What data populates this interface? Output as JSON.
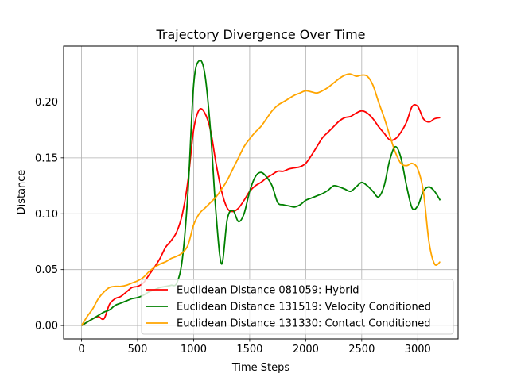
{
  "chart_data": {
    "type": "line",
    "title": "Trajectory Divergence Over Time",
    "xlabel": "Time Steps",
    "ylabel": "Distance",
    "xlim": [
      -160,
      3360
    ],
    "ylim": [
      -0.012,
      0.25
    ],
    "xticks": [
      0,
      500,
      1000,
      1500,
      2000,
      2500,
      3000
    ],
    "yticks": [
      0.0,
      0.05,
      0.1,
      0.15,
      0.2
    ],
    "xtick_labels": [
      "0",
      "500",
      "1000",
      "1500",
      "2000",
      "2500",
      "3000"
    ],
    "ytick_labels": [
      "0.00",
      "0.05",
      "0.10",
      "0.15",
      "0.20"
    ],
    "grid": true,
    "legend_position": "lower-right",
    "series": [
      {
        "name": "Euclidean Distance 081059: Hybrid",
        "color": "#ff0000",
        "x": [
          0,
          50,
          100,
          150,
          200,
          250,
          300,
          350,
          400,
          450,
          500,
          550,
          600,
          650,
          700,
          750,
          800,
          850,
          900,
          950,
          1000,
          1050,
          1100,
          1150,
          1200,
          1250,
          1300,
          1350,
          1400,
          1450,
          1500,
          1550,
          1600,
          1650,
          1700,
          1750,
          1800,
          1850,
          1900,
          1950,
          2000,
          2050,
          2100,
          2150,
          2200,
          2250,
          2300,
          2350,
          2400,
          2450,
          2500,
          2550,
          2600,
          2650,
          2700,
          2750,
          2800,
          2850,
          2900,
          2950,
          3000,
          3050,
          3100,
          3150,
          3200
        ],
        "y": [
          0.0,
          0.003,
          0.006,
          0.008,
          0.006,
          0.019,
          0.024,
          0.026,
          0.03,
          0.034,
          0.035,
          0.038,
          0.045,
          0.052,
          0.06,
          0.07,
          0.076,
          0.084,
          0.1,
          0.13,
          0.175,
          0.193,
          0.19,
          0.175,
          0.145,
          0.12,
          0.105,
          0.102,
          0.105,
          0.112,
          0.12,
          0.125,
          0.128,
          0.132,
          0.135,
          0.138,
          0.138,
          0.14,
          0.141,
          0.142,
          0.145,
          0.152,
          0.16,
          0.168,
          0.173,
          0.178,
          0.183,
          0.186,
          0.187,
          0.19,
          0.192,
          0.19,
          0.185,
          0.178,
          0.172,
          0.166,
          0.167,
          0.173,
          0.182,
          0.196,
          0.196,
          0.185,
          0.182,
          0.185,
          0.186
        ]
      },
      {
        "name": "Euclidean Distance 131519: Velocity Conditioned",
        "color": "#008000",
        "x": [
          0,
          50,
          100,
          150,
          200,
          250,
          300,
          350,
          400,
          450,
          500,
          550,
          600,
          650,
          700,
          750,
          800,
          850,
          900,
          950,
          1000,
          1050,
          1100,
          1150,
          1200,
          1250,
          1300,
          1350,
          1400,
          1450,
          1500,
          1550,
          1600,
          1650,
          1700,
          1750,
          1800,
          1850,
          1900,
          1950,
          2000,
          2050,
          2100,
          2150,
          2200,
          2250,
          2300,
          2350,
          2400,
          2450,
          2500,
          2550,
          2600,
          2650,
          2700,
          2750,
          2800,
          2850,
          2900,
          2950,
          3000,
          3050,
          3100,
          3150,
          3200
        ],
        "y": [
          0.0,
          0.003,
          0.006,
          0.009,
          0.012,
          0.014,
          0.018,
          0.02,
          0.022,
          0.024,
          0.025,
          0.027,
          0.03,
          0.032,
          0.034,
          0.035,
          0.036,
          0.038,
          0.06,
          0.12,
          0.215,
          0.237,
          0.225,
          0.175,
          0.1,
          0.055,
          0.095,
          0.103,
          0.093,
          0.1,
          0.12,
          0.133,
          0.137,
          0.133,
          0.125,
          0.11,
          0.108,
          0.107,
          0.106,
          0.108,
          0.112,
          0.114,
          0.116,
          0.118,
          0.121,
          0.125,
          0.124,
          0.122,
          0.12,
          0.124,
          0.128,
          0.125,
          0.12,
          0.115,
          0.125,
          0.148,
          0.16,
          0.15,
          0.125,
          0.105,
          0.107,
          0.12,
          0.124,
          0.12,
          0.112
        ]
      },
      {
        "name": "Euclidean Distance 131330: Contact Conditioned",
        "color": "#ffa500",
        "x": [
          0,
          50,
          100,
          150,
          200,
          250,
          300,
          350,
          400,
          450,
          500,
          550,
          600,
          650,
          700,
          750,
          800,
          850,
          900,
          950,
          1000,
          1050,
          1100,
          1150,
          1200,
          1250,
          1300,
          1350,
          1400,
          1450,
          1500,
          1550,
          1600,
          1650,
          1700,
          1750,
          1800,
          1850,
          1900,
          1950,
          2000,
          2050,
          2100,
          2150,
          2200,
          2250,
          2300,
          2350,
          2400,
          2450,
          2500,
          2550,
          2600,
          2650,
          2700,
          2750,
          2800,
          2850,
          2900,
          2950,
          3000,
          3050,
          3100,
          3150,
          3200
        ],
        "y": [
          0.0,
          0.008,
          0.015,
          0.024,
          0.03,
          0.034,
          0.035,
          0.035,
          0.036,
          0.038,
          0.04,
          0.043,
          0.048,
          0.052,
          0.055,
          0.057,
          0.06,
          0.062,
          0.065,
          0.072,
          0.09,
          0.1,
          0.105,
          0.11,
          0.115,
          0.122,
          0.13,
          0.14,
          0.15,
          0.16,
          0.167,
          0.173,
          0.178,
          0.185,
          0.192,
          0.197,
          0.2,
          0.203,
          0.206,
          0.208,
          0.21,
          0.209,
          0.208,
          0.21,
          0.213,
          0.217,
          0.221,
          0.224,
          0.225,
          0.223,
          0.224,
          0.223,
          0.215,
          0.2,
          0.186,
          0.17,
          0.155,
          0.145,
          0.143,
          0.145,
          0.14,
          0.12,
          0.075,
          0.055,
          0.057
        ]
      }
    ]
  }
}
